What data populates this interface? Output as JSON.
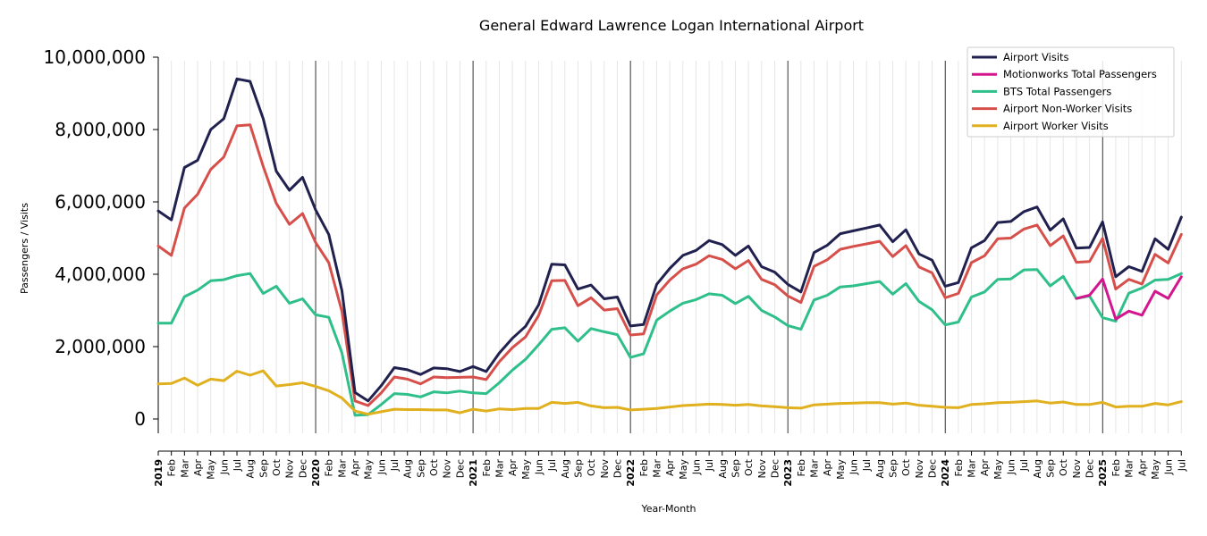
{
  "chart_data": {
    "type": "line",
    "title": "General Edward Lawrence Logan International Airport",
    "xlabel": "Year-Month",
    "ylabel": "Passengers / Visits",
    "ylim": [
      -400000,
      10000000
    ],
    "y_ticks": [
      0,
      2000000,
      4000000,
      6000000,
      8000000,
      10000000
    ],
    "y_tick_labels": [
      "0",
      "2,000,000",
      "4,000,000",
      "6,000,000",
      "8,000,000",
      "10,000,000"
    ],
    "x_tick_labels": [
      "2019",
      "Feb",
      "Mar",
      "Apr",
      "May",
      "Jun",
      "Jul",
      "Aug",
      "Sep",
      "Oct",
      "Nov",
      "Dec",
      "2020",
      "Feb",
      "Mar",
      "Apr",
      "May",
      "Jun",
      "Jul",
      "Aug",
      "Sep",
      "Oct",
      "Nov",
      "Dec",
      "2021",
      "Feb",
      "Mar",
      "Apr",
      "May",
      "Jun",
      "Jul",
      "Aug",
      "Sep",
      "Oct",
      "Nov",
      "Dec",
      "2022",
      "Feb",
      "Mar",
      "Apr",
      "May",
      "Jun",
      "Jul",
      "Aug",
      "Sep",
      "Oct",
      "Nov",
      "Dec",
      "2023",
      "Feb",
      "Mar",
      "Apr",
      "May",
      "Jun",
      "Jul",
      "Aug",
      "Sep",
      "Oct",
      "Nov",
      "Dec",
      "2024",
      "Feb",
      "Mar",
      "Apr",
      "May",
      "Jun",
      "Jul",
      "Aug",
      "Sep",
      "Oct",
      "Nov",
      "Dec",
      "2025",
      "Feb",
      "Mar",
      "Apr",
      "May",
      "Jun",
      "Jul"
    ],
    "year_tick_indices": [
      0,
      12,
      24,
      36,
      48,
      60,
      72
    ],
    "grid": "vertical monthly lines; solid black lines at year starts",
    "legend_position": "top-right",
    "series": [
      {
        "name": "Airport Visits",
        "color": "#21214f",
        "values": [
          5750000,
          5500000,
          6950000,
          7150000,
          8000000,
          8300000,
          9400000,
          9330000,
          8300000,
          6850000,
          6320000,
          6680000,
          5780000,
          5100000,
          3550000,
          730000,
          500000,
          920000,
          1420000,
          1360000,
          1230000,
          1410000,
          1390000,
          1310000,
          1450000,
          1310000,
          1820000,
          2230000,
          2560000,
          3150000,
          4280000,
          4260000,
          3590000,
          3700000,
          3320000,
          3370000,
          2570000,
          2610000,
          3720000,
          4160000,
          4520000,
          4660000,
          4930000,
          4820000,
          4520000,
          4780000,
          4210000,
          4060000,
          3720000,
          3510000,
          4600000,
          4800000,
          5120000,
          5200000,
          5280000,
          5360000,
          4900000,
          5230000,
          4560000,
          4390000,
          3670000,
          3770000,
          4730000,
          4930000,
          5430000,
          5460000,
          5730000,
          5860000,
          5220000,
          5530000,
          4720000,
          4740000,
          5450000,
          3930000,
          4210000,
          4080000,
          4980000,
          4690000,
          5580000
        ]
      },
      {
        "name": "Motionworks Total Passengers",
        "color": "#d4168e",
        "values": [
          null,
          null,
          null,
          null,
          null,
          null,
          null,
          null,
          null,
          null,
          null,
          null,
          null,
          null,
          null,
          null,
          null,
          null,
          null,
          null,
          null,
          null,
          null,
          null,
          null,
          null,
          null,
          null,
          null,
          null,
          null,
          null,
          null,
          null,
          null,
          null,
          null,
          null,
          null,
          null,
          null,
          null,
          null,
          null,
          null,
          null,
          null,
          null,
          null,
          null,
          null,
          null,
          null,
          null,
          null,
          null,
          null,
          null,
          null,
          null,
          null,
          null,
          null,
          null,
          null,
          null,
          null,
          null,
          null,
          null,
          3330000,
          3420000,
          3870000,
          2760000,
          2980000,
          2870000,
          3530000,
          3330000,
          3930000
        ]
      },
      {
        "name": "BTS Total Passengers",
        "color": "#2ebf8a",
        "values": [
          2650000,
          2650000,
          3380000,
          3560000,
          3820000,
          3850000,
          3960000,
          4020000,
          3470000,
          3670000,
          3200000,
          3320000,
          2880000,
          2810000,
          1830000,
          100000,
          120000,
          400000,
          700000,
          680000,
          610000,
          750000,
          720000,
          770000,
          720000,
          700000,
          1000000,
          1350000,
          1650000,
          2050000,
          2480000,
          2520000,
          2150000,
          2500000,
          2410000,
          2330000,
          1700000,
          1800000,
          2730000,
          2980000,
          3200000,
          3300000,
          3460000,
          3420000,
          3190000,
          3390000,
          3000000,
          2820000,
          2580000,
          2480000,
          3290000,
          3420000,
          3650000,
          3680000,
          3740000,
          3800000,
          3450000,
          3740000,
          3250000,
          3020000,
          2600000,
          2680000,
          3370000,
          3510000,
          3860000,
          3870000,
          4120000,
          4130000,
          3680000,
          3940000,
          3330000,
          3400000,
          2800000,
          2700000,
          3480000,
          3620000,
          3840000,
          3860000,
          4020000
        ]
      },
      {
        "name": "Airport Non-Worker Visits",
        "color": "#d64f4a",
        "values": [
          4780000,
          4520000,
          5830000,
          6210000,
          6900000,
          7240000,
          8100000,
          8130000,
          6980000,
          5960000,
          5380000,
          5680000,
          4880000,
          4320000,
          2980000,
          500000,
          370000,
          720000,
          1160000,
          1100000,
          970000,
          1160000,
          1140000,
          1150000,
          1160000,
          1090000,
          1580000,
          1970000,
          2270000,
          2860000,
          3820000,
          3830000,
          3130000,
          3350000,
          3010000,
          3050000,
          2320000,
          2350000,
          3430000,
          3840000,
          4150000,
          4280000,
          4510000,
          4410000,
          4150000,
          4380000,
          3860000,
          3710000,
          3400000,
          3220000,
          4220000,
          4400000,
          4690000,
          4770000,
          4840000,
          4910000,
          4490000,
          4790000,
          4200000,
          4040000,
          3350000,
          3470000,
          4320000,
          4510000,
          4980000,
          5000000,
          5250000,
          5360000,
          4790000,
          5060000,
          4330000,
          4350000,
          4990000,
          3590000,
          3860000,
          3730000,
          4550000,
          4310000,
          5100000
        ]
      },
      {
        "name": "Airport Worker Visits",
        "color": "#e0b01e",
        "values": [
          970000,
          980000,
          1130000,
          930000,
          1100000,
          1060000,
          1320000,
          1210000,
          1330000,
          910000,
          950000,
          1000000,
          900000,
          780000,
          580000,
          220000,
          130000,
          200000,
          270000,
          260000,
          260000,
          250000,
          250000,
          170000,
          270000,
          220000,
          280000,
          260000,
          290000,
          290000,
          460000,
          430000,
          460000,
          360000,
          310000,
          320000,
          250000,
          270000,
          290000,
          330000,
          370000,
          390000,
          410000,
          400000,
          380000,
          400000,
          360000,
          340000,
          310000,
          300000,
          390000,
          410000,
          430000,
          440000,
          450000,
          450000,
          410000,
          440000,
          380000,
          350000,
          320000,
          310000,
          400000,
          420000,
          450000,
          460000,
          480000,
          500000,
          440000,
          470000,
          400000,
          400000,
          460000,
          330000,
          350000,
          350000,
          430000,
          390000,
          480000
        ]
      }
    ]
  }
}
